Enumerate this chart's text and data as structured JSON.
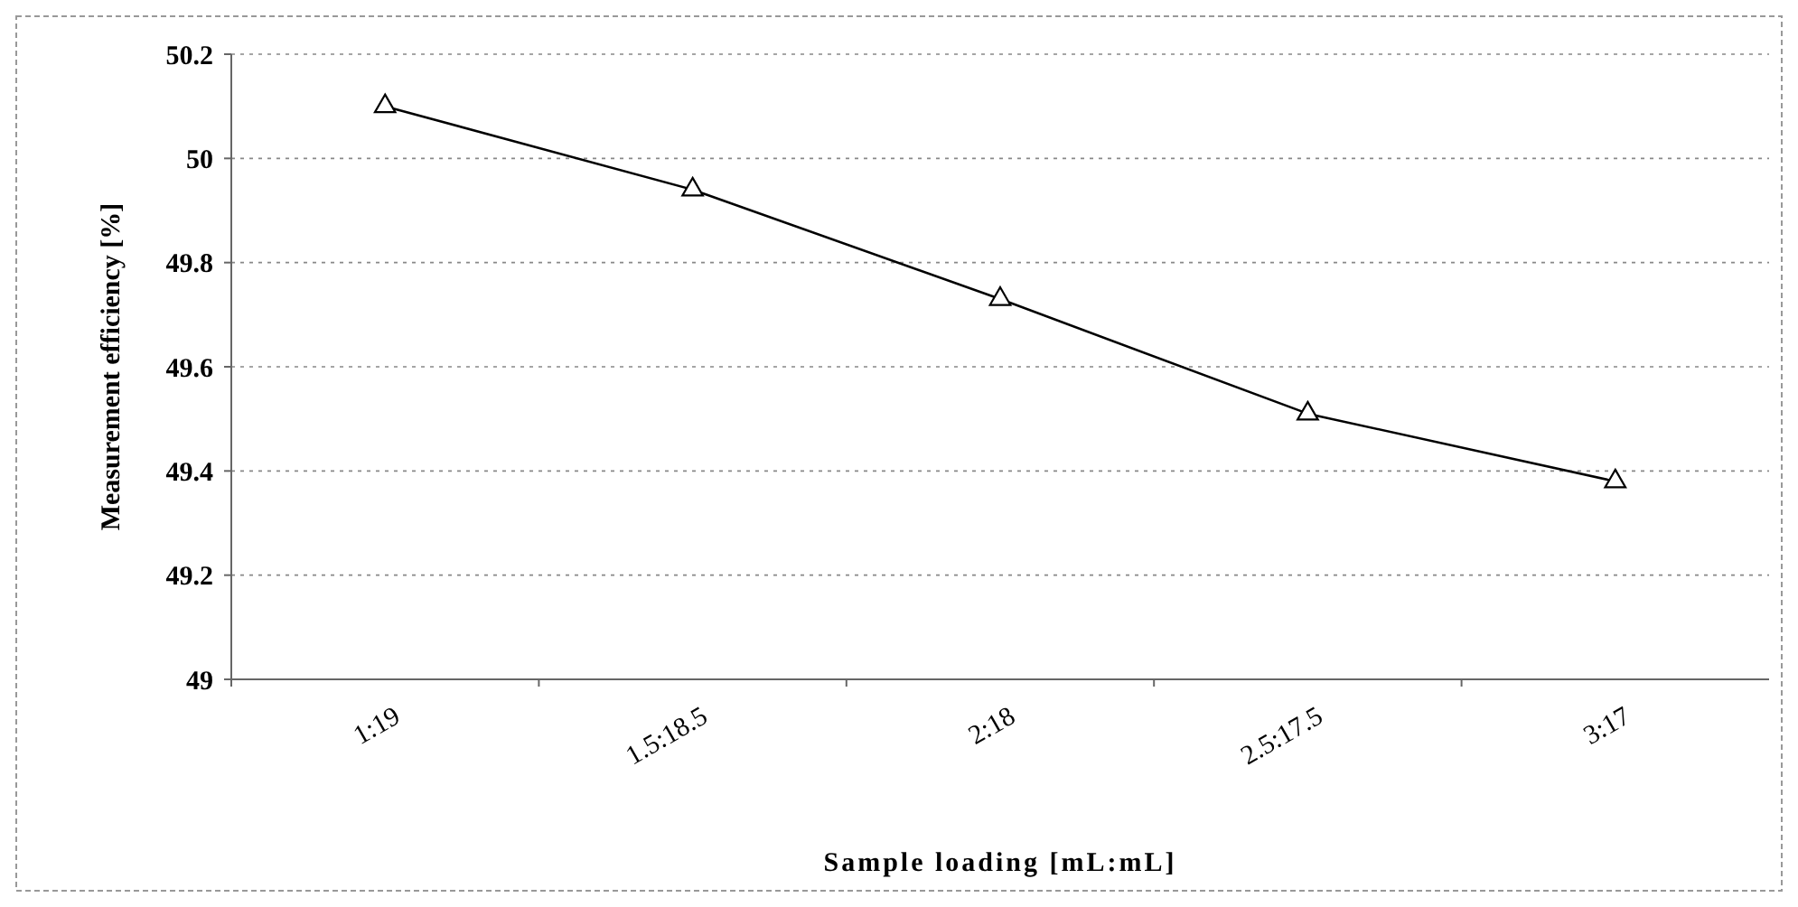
{
  "chart_data": {
    "type": "line",
    "xlabel": "Sample loading [mL:mL]",
    "ylabel": "Measurement efficiency [%]",
    "categories": [
      "1:19",
      "1.5:18.5",
      "2:18",
      "2.5:17.5",
      "3:17"
    ],
    "series": [
      {
        "color": "#000000",
        "values": [
          50.1,
          49.94,
          49.73,
          49.51,
          49.38
        ]
      }
    ],
    "ylim": [
      49,
      50.2
    ],
    "yticks": [
      49,
      49.2,
      49.4,
      49.6,
      49.8,
      50,
      50.2
    ],
    "grid": "y",
    "marker": "triangle",
    "line_style": "solid"
  }
}
